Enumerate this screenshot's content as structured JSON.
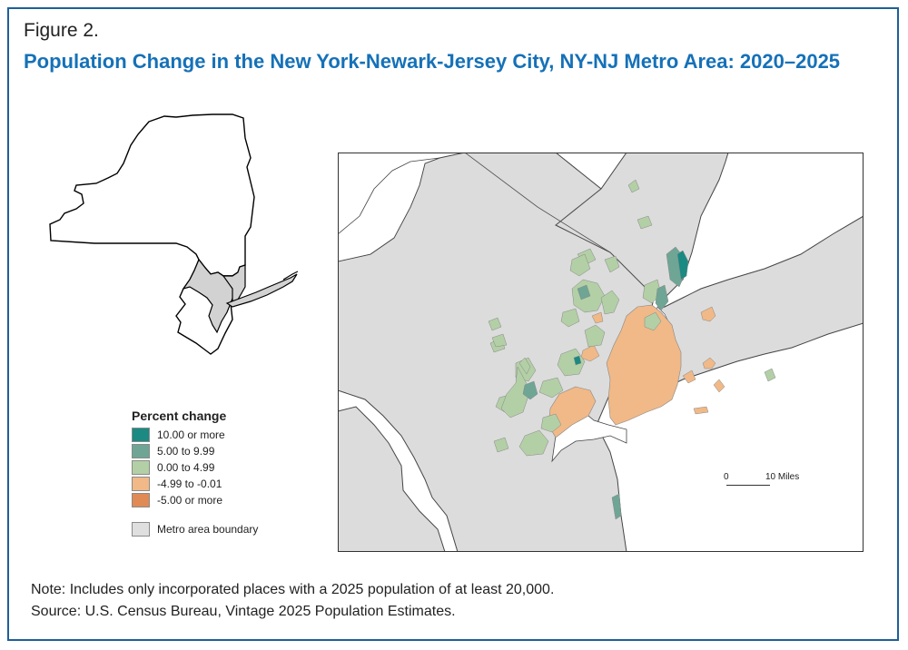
{
  "figure": {
    "label": "Figure 2.",
    "title": "Population Change in the New York-Newark-Jersey City, NY-NJ Metro Area: 2020–2025"
  },
  "legend": {
    "title": "Percent change",
    "items": [
      {
        "label": "10.00 or more",
        "color": "#1a8a82"
      },
      {
        "label": "5.00 to 9.99",
        "color": "#6fa595"
      },
      {
        "label": "0.00 to 4.99",
        "color": "#b3cfa6"
      },
      {
        "label": "-4.99 to -0.01",
        "color": "#f0b987"
      },
      {
        "label": "-5.00 or more",
        "color": "#e08a55"
      }
    ],
    "boundary_label": "Metro area boundary",
    "boundary_color": "#dfdfdf"
  },
  "scale": {
    "zero_label": "0",
    "ten_label": "10 Miles"
  },
  "note": "Note: Includes only incorporated places with a 2025 population of at least 20,000.",
  "source": "Source: U.S. Census Bureau, Vintage 2025 Population Estimates."
}
